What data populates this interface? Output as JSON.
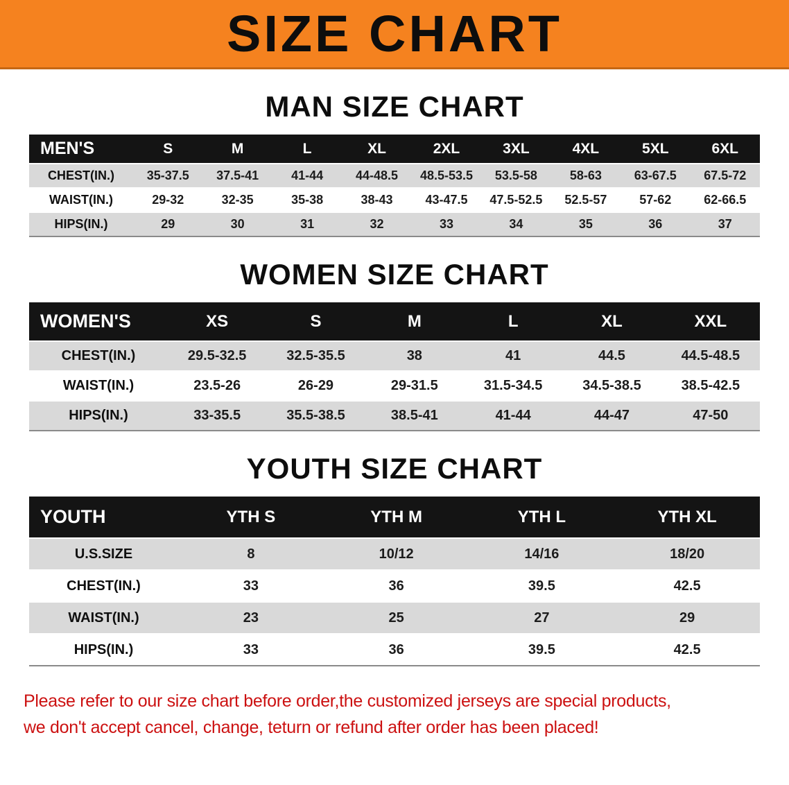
{
  "banner": {
    "title": "SIZE CHART"
  },
  "colors": {
    "banner_bg": "#F5821F",
    "header_bg": "#141414",
    "row_alt": "#D9D9D9",
    "footer_text": "#CC1111"
  },
  "sections": [
    {
      "id": "men",
      "heading": "MAN SIZE CHART",
      "table": {
        "header": [
          "MEN'S",
          "S",
          "M",
          "L",
          "XL",
          "2XL",
          "3XL",
          "4XL",
          "5XL",
          "6XL"
        ],
        "rows": [
          [
            "CHEST(IN.)",
            "35-37.5",
            "37.5-41",
            "41-44",
            "44-48.5",
            "48.5-53.5",
            "53.5-58",
            "58-63",
            "63-67.5",
            "67.5-72"
          ],
          [
            "WAIST(IN.)",
            "29-32",
            "32-35",
            "35-38",
            "38-43",
            "43-47.5",
            "47.5-52.5",
            "52.5-57",
            "57-62",
            "62-66.5"
          ],
          [
            "HIPS(IN.)",
            "29",
            "30",
            "31",
            "32",
            "33",
            "34",
            "35",
            "36",
            "37"
          ]
        ]
      }
    },
    {
      "id": "women",
      "heading": "WOMEN SIZE CHART",
      "table": {
        "header": [
          "WOMEN'S",
          "XS",
          "S",
          "M",
          "L",
          "XL",
          "XXL"
        ],
        "rows": [
          [
            "CHEST(IN.)",
            "29.5-32.5",
            "32.5-35.5",
            "38",
            "41",
            "44.5",
            "44.5-48.5"
          ],
          [
            "WAIST(IN.)",
            "23.5-26",
            "26-29",
            "29-31.5",
            "31.5-34.5",
            "34.5-38.5",
            "38.5-42.5"
          ],
          [
            "HIPS(IN.)",
            "33-35.5",
            "35.5-38.5",
            "38.5-41",
            "41-44",
            "44-47",
            "47-50"
          ]
        ]
      }
    },
    {
      "id": "youth",
      "heading": "YOUTH SIZE CHART",
      "table": {
        "header": [
          "YOUTH",
          "YTH S",
          "YTH M",
          "YTH L",
          "YTH XL"
        ],
        "rows": [
          [
            "U.S.SIZE",
            "8",
            "10/12",
            "14/16",
            "18/20"
          ],
          [
            "CHEST(IN.)",
            "33",
            "36",
            "39.5",
            "42.5"
          ],
          [
            "WAIST(IN.)",
            "23",
            "25",
            "27",
            "29"
          ],
          [
            "HIPS(IN.)",
            "33",
            "36",
            "39.5",
            "42.5"
          ]
        ]
      }
    }
  ],
  "footer": {
    "line1": "Please refer to our size chart before order,the customized jerseys are special products,",
    "line2": "we don't accept cancel, change, teturn or refund after order has been placed!"
  }
}
